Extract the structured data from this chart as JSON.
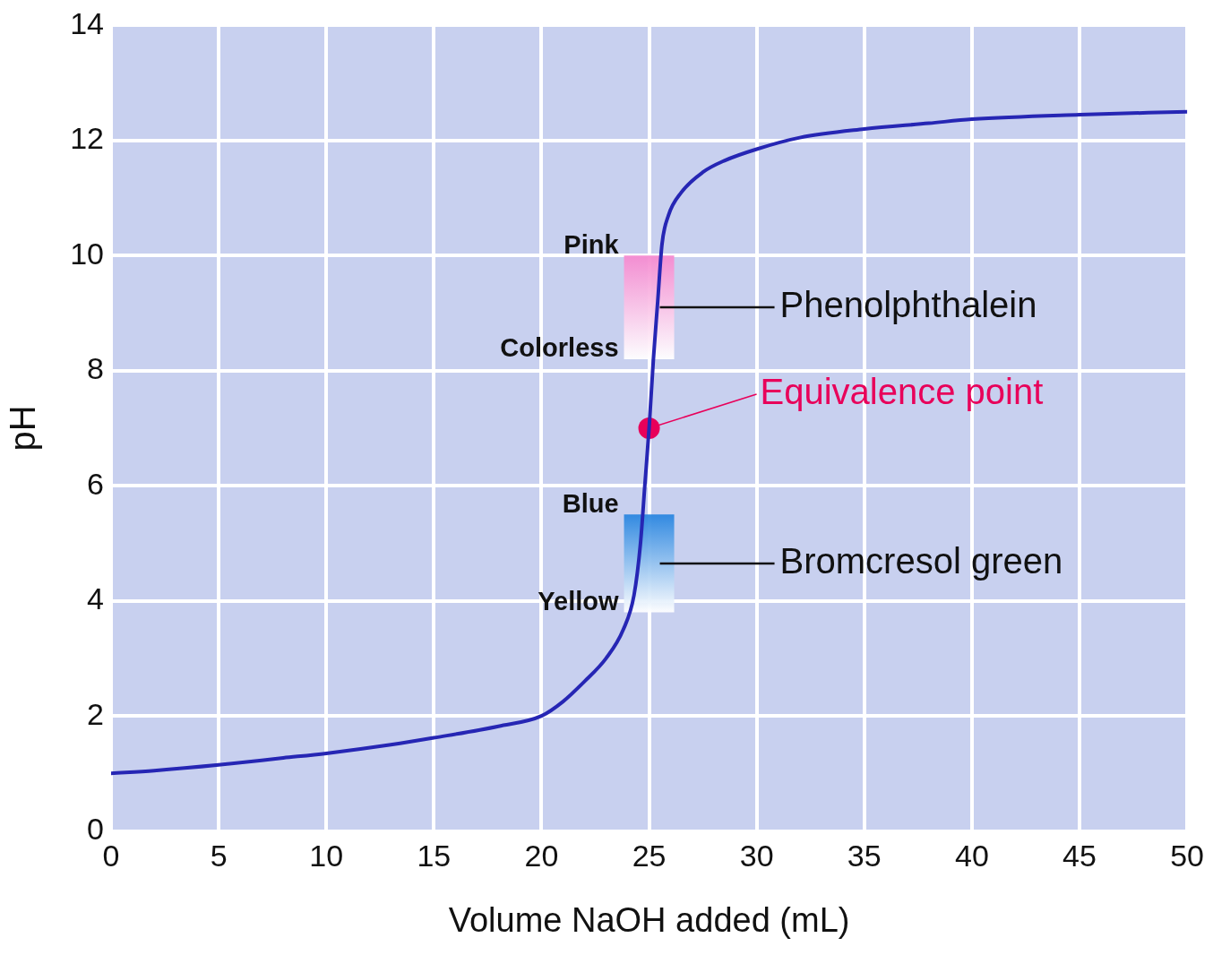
{
  "chart_data": {
    "type": "line",
    "xlabel": "Volume NaOH added (mL)",
    "ylabel": "pH",
    "xlim": [
      0,
      50
    ],
    "xticks": [
      0,
      5,
      10,
      15,
      20,
      25,
      30,
      35,
      40,
      45,
      50
    ],
    "ylim": [
      0,
      14
    ],
    "yticks": [
      0,
      2,
      4,
      6,
      8,
      10,
      12,
      14
    ],
    "grid": true,
    "legend": false,
    "series": [
      {
        "color": "#2626b4",
        "x": [
          0,
          2,
          5,
          8,
          10,
          13,
          15,
          18,
          20,
          21,
          22,
          23,
          23.8,
          24.3,
          24.6,
          24.8,
          25,
          25.2,
          25.4,
          25.6,
          25.9,
          26.5,
          27.5,
          28.5,
          30,
          32,
          35,
          38,
          40,
          45,
          50
        ],
        "values": [
          1.0,
          1.05,
          1.15,
          1.27,
          1.35,
          1.5,
          1.62,
          1.82,
          2.0,
          2.25,
          2.6,
          3.0,
          3.5,
          4.1,
          5.0,
          6.0,
          7.0,
          8.2,
          9.2,
          10.2,
          10.7,
          11.1,
          11.45,
          11.65,
          11.85,
          12.05,
          12.2,
          12.3,
          12.37,
          12.45,
          12.5
        ]
      },
      {
        "type": "scatter",
        "marker": "circle",
        "color": "#e8005a",
        "x": [
          25
        ],
        "values": [
          7
        ]
      }
    ],
    "bands": [
      {
        "axis": "y",
        "from": 8.2,
        "to": 10,
        "label": "Phenolphthalein",
        "color": "#f58ad0"
      },
      {
        "axis": "y",
        "from": 3.8,
        "to": 5.5,
        "label": "Bromcresol green",
        "color": "#2a86e0"
      }
    ],
    "annotations": [
      "Pink",
      "Colorless",
      "Blue",
      "Yellow",
      {
        "text": "Equivalence point",
        "x": 25,
        "y": 7
      }
    ]
  }
}
